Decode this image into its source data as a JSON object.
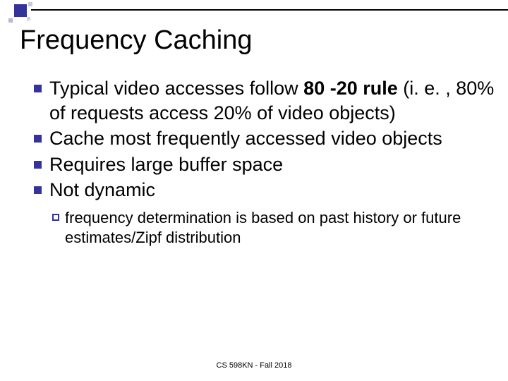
{
  "colors": {
    "accent": "#33339a",
    "background": "#ffffff",
    "text": "#000000"
  },
  "title": "Frequency Caching",
  "bullets": [
    {
      "pre": "Typical video accesses follow ",
      "bold": "80 -20 rule ",
      "post": "(i. e. , 80% of requests access 20% of video objects)"
    },
    {
      "pre": "Cache most frequently accessed video objects",
      "bold": "",
      "post": ""
    },
    {
      "pre": "Requires large buffer space",
      "bold": "",
      "post": ""
    },
    {
      "pre": "Not dynamic",
      "bold": "",
      "post": ""
    }
  ],
  "subbullet": {
    "bold": "frequency ",
    "rest": "determination is based on past history or future estimates/Zipf distribution"
  },
  "footer": "CS 598KN - Fall 2018"
}
